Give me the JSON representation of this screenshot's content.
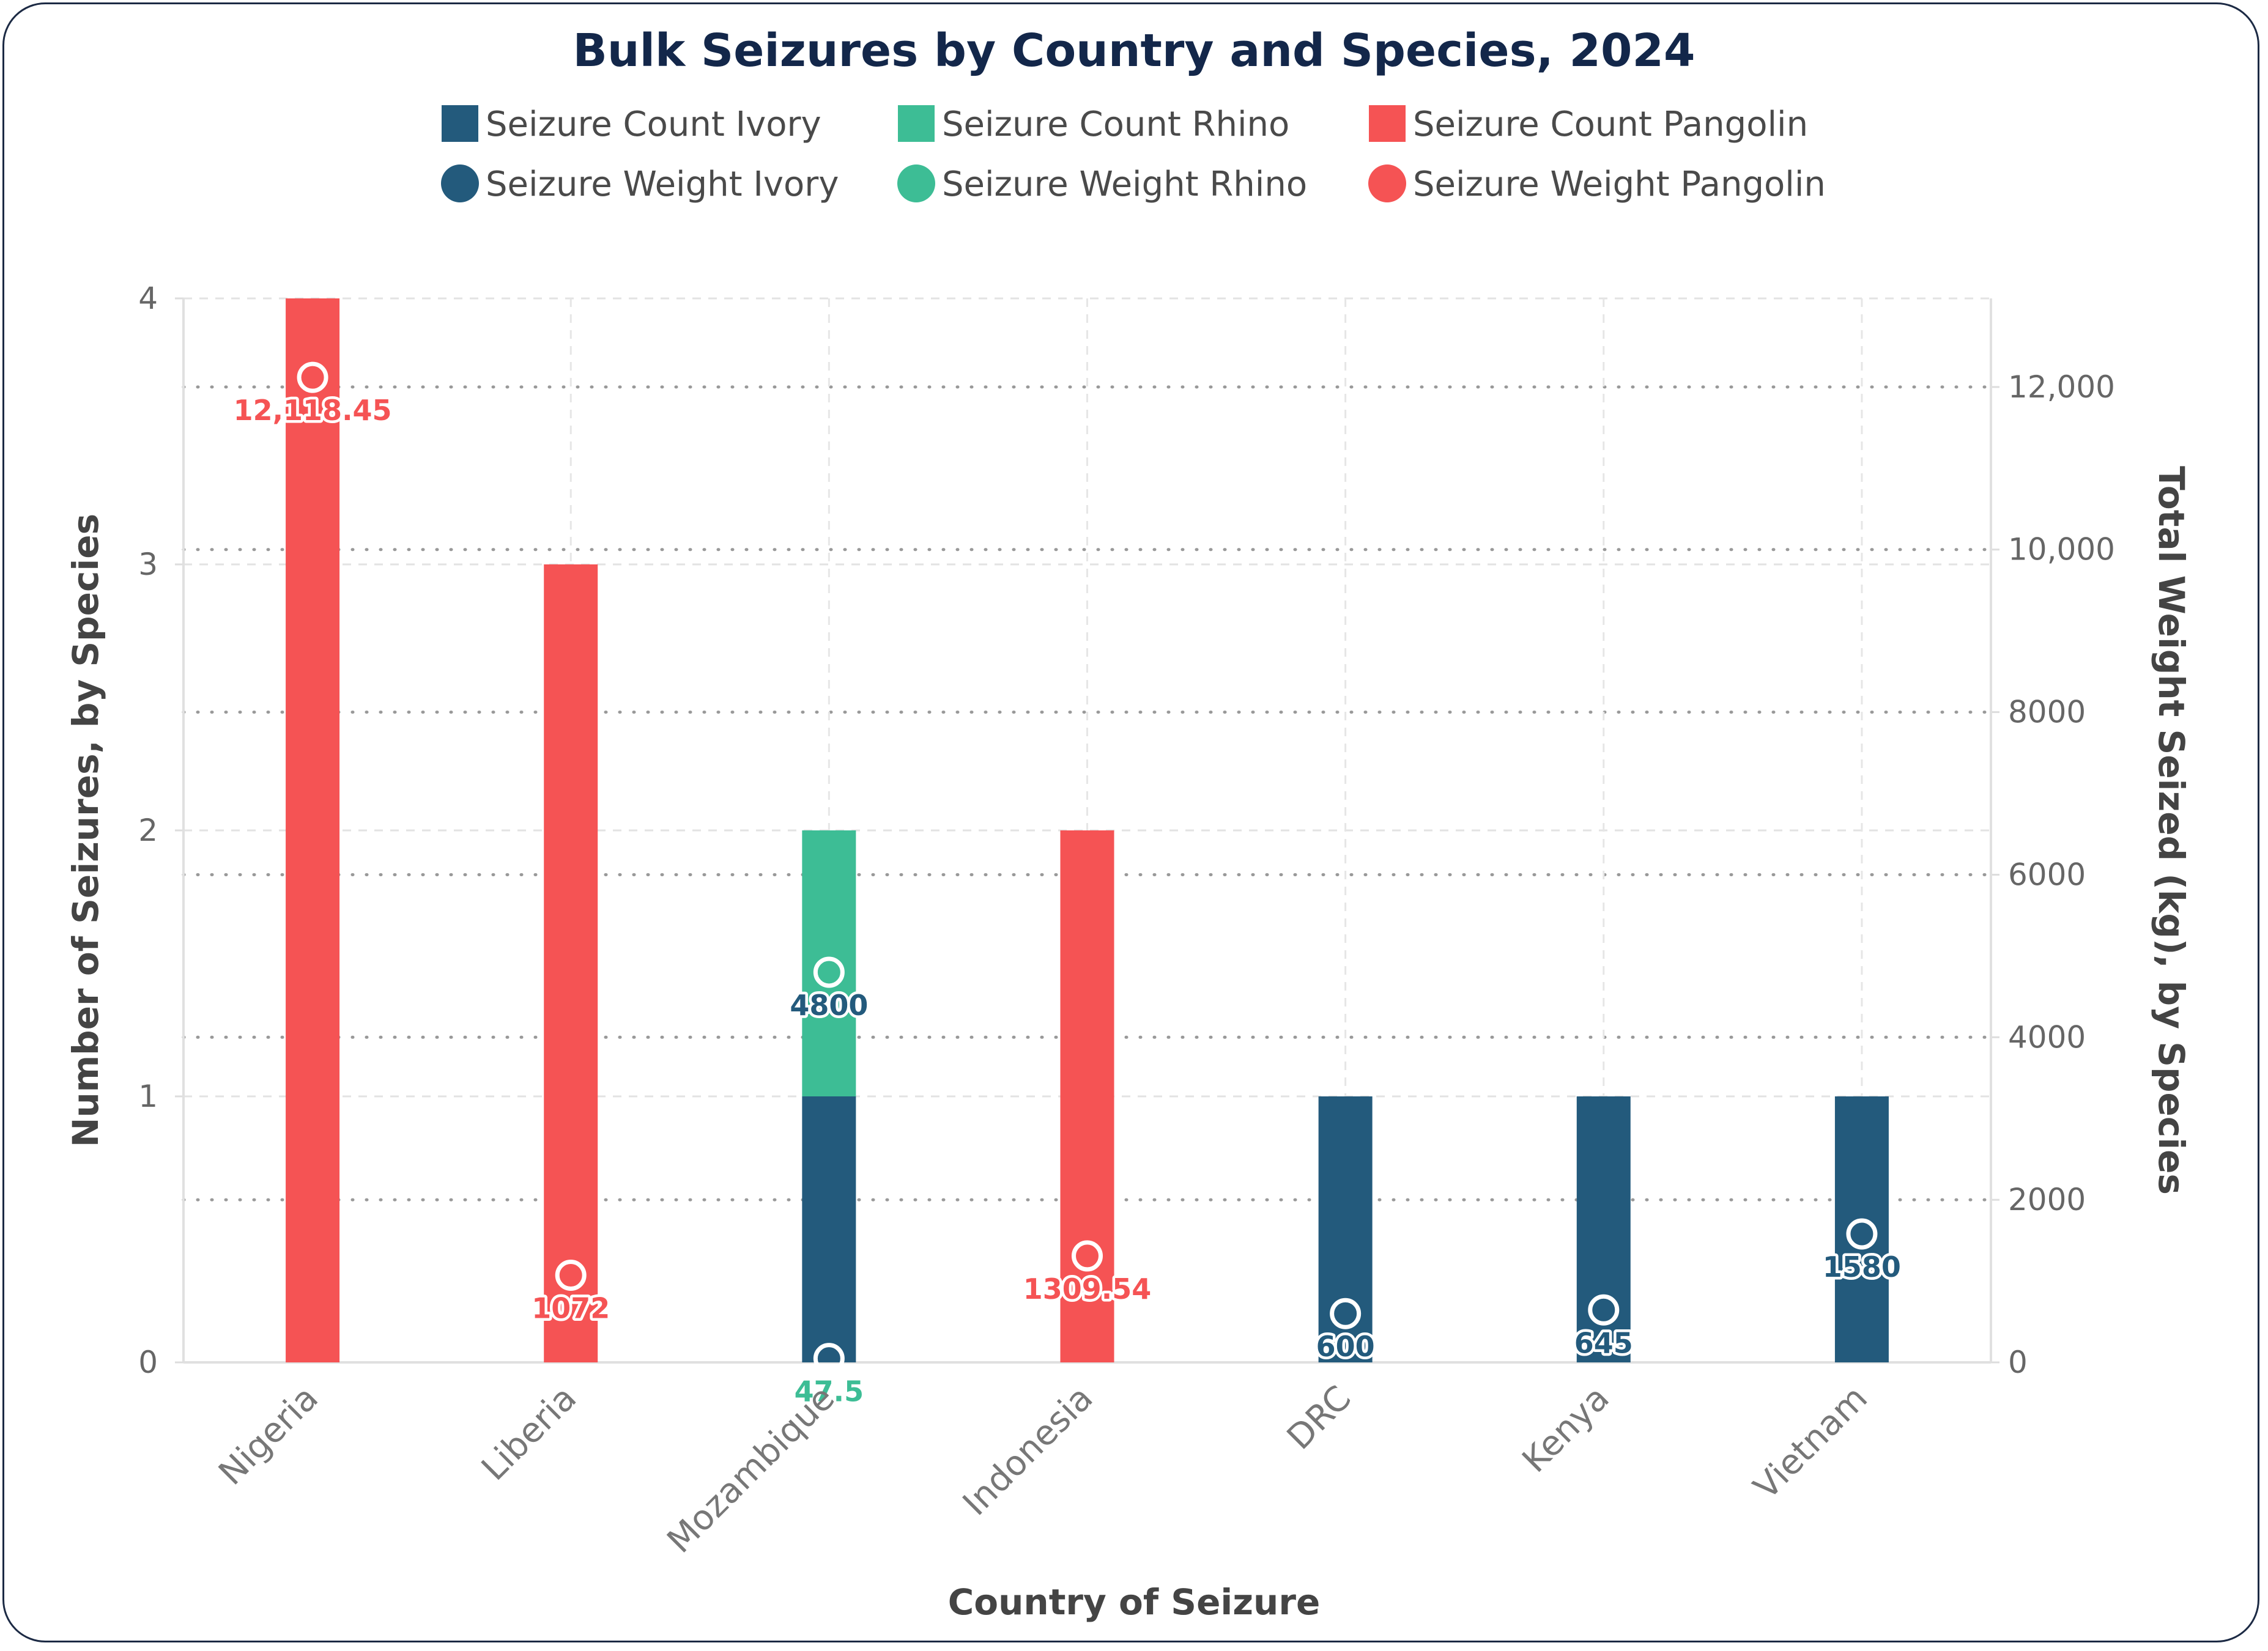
{
  "chart_data": {
    "type": "bar",
    "title": "Bulk Seizures by Country and Species, 2024",
    "xlabel": "Country of Seizure",
    "ylabel_left": "Number of Seizures, by Species",
    "ylabel_right": "Total Weight Seized (kg), by Species",
    "categories": [
      "Nigeria",
      "Liberia",
      "Mozambique",
      "Indonesia",
      "DRC",
      "Kenya",
      "Vietnam"
    ],
    "ylim_left": [
      0,
      4
    ],
    "left_ticks": [
      "0",
      "1",
      "2",
      "3",
      "4"
    ],
    "left_tick_values": [
      0,
      1,
      2,
      3,
      4
    ],
    "ylim_right": [
      0,
      13090
    ],
    "right_ticks": [
      "0",
      "2000",
      "4000",
      "6000",
      "8000",
      "10,000",
      "12,000"
    ],
    "right_tick_values": [
      0,
      2000,
      4000,
      6000,
      8000,
      10000,
      12000
    ],
    "stacked": true,
    "grid": true,
    "legend_position": "top",
    "bar_series": [
      {
        "name": "Seizure Count Ivory",
        "color": "#235a7c",
        "values": [
          0,
          0,
          1,
          0,
          1,
          1,
          1
        ]
      },
      {
        "name": "Seizure Count Rhino",
        "color": "#3dbd95",
        "values": [
          0,
          0,
          1,
          0,
          0,
          0,
          0
        ]
      },
      {
        "name": "Seizure Count Pangolin",
        "color": "#f55354",
        "values": [
          4,
          3,
          0,
          2,
          0,
          0,
          0
        ]
      }
    ],
    "point_series": [
      {
        "name": "Seizure Weight Ivory",
        "color": "#235a7c",
        "values": [
          null,
          null,
          4800,
          null,
          600,
          645,
          1580
        ],
        "labels": [
          null,
          null,
          "4800",
          null,
          "600",
          "645",
          "1580"
        ]
      },
      {
        "name": "Seizure Weight Rhino",
        "color": "#3dbd95",
        "values": [
          null,
          null,
          47.5,
          null,
          null,
          null,
          null
        ],
        "labels": [
          null,
          null,
          "47.5",
          null,
          null,
          null,
          null
        ]
      },
      {
        "name": "Seizure Weight Pangolin",
        "color": "#f55354",
        "values": [
          12118.45,
          1072,
          null,
          1309.54,
          null,
          null,
          null
        ],
        "labels": [
          "12,118.45",
          "1072",
          null,
          "1309.54",
          null,
          null,
          null
        ]
      }
    ]
  }
}
